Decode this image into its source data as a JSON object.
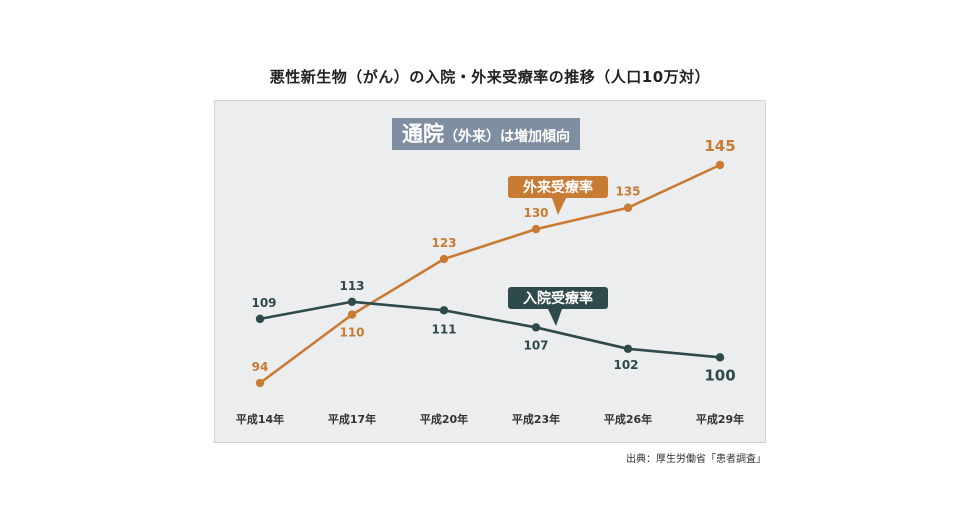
{
  "chart_data": {
    "type": "line",
    "title": "悪性新生物（がん）の入院・外来受療率の推移（人口10万対）",
    "subtitle": "通院（外来）は増加傾向",
    "subtitle_parts": {
      "main": "通院",
      "paren": "（外来）",
      "rest": "は増加傾向"
    },
    "categories": [
      "平成14年",
      "平成17年",
      "平成20年",
      "平成23年",
      "平成26年",
      "平成29年"
    ],
    "series": [
      {
        "name": "外来受療率",
        "color": "#c87b33",
        "values": [
          94,
          110,
          123,
          130,
          135,
          145
        ]
      },
      {
        "name": "入院受療率",
        "color": "#2f4a4b",
        "values": [
          109,
          113,
          111,
          107,
          102,
          100
        ]
      }
    ],
    "ylim": [
      90,
      150
    ],
    "grid": false,
    "legend": "inline-callouts",
    "source": "出典：厚生労働省「患者調査」"
  }
}
